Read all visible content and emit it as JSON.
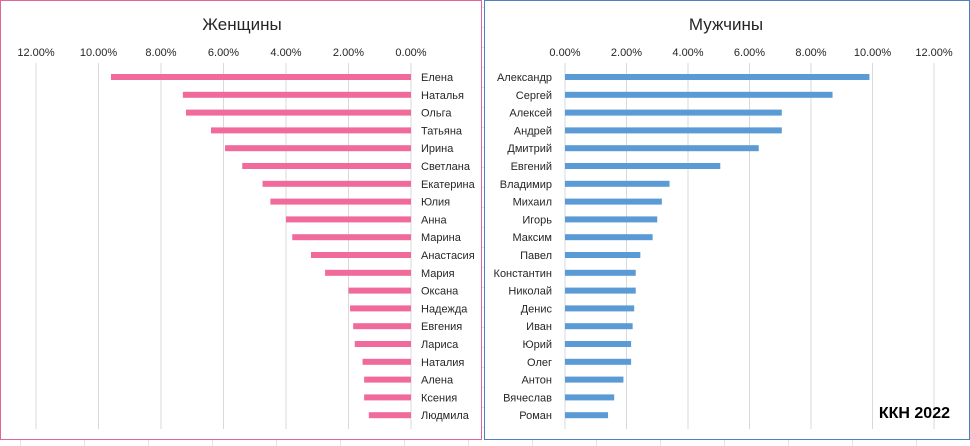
{
  "watermark": "ККН 2022",
  "chart_data": [
    {
      "type": "bar",
      "orientation": "horizontal",
      "x_direction": "reversed",
      "title": "Женщины",
      "xlim": [
        0,
        12
      ],
      "ticks": [
        "0.00%",
        "2.00%",
        "4.00%",
        "6.00%",
        "8.00%",
        "10.00%",
        "12.00%"
      ],
      "tick_values": [
        0,
        2,
        4,
        6,
        8,
        10,
        12
      ],
      "grid": true,
      "color": "#f06b9b",
      "categories": [
        "Елена",
        "Наталья",
        "Ольга",
        "Татьяна",
        "Ирина",
        "Светлана",
        "Екатерина",
        "Юлия",
        "Анна",
        "Марина",
        "Анастасия",
        "Мария",
        "Оксана",
        "Надежда",
        "Евгения",
        "Лариса",
        "Наталия",
        "Алена",
        "Ксения",
        "Людмила"
      ],
      "values": [
        9.6,
        7.3,
        7.2,
        6.4,
        5.95,
        5.4,
        4.75,
        4.5,
        4.0,
        3.8,
        3.2,
        2.75,
        2.0,
        1.95,
        1.85,
        1.8,
        1.55,
        1.5,
        1.5,
        1.35
      ]
    },
    {
      "type": "bar",
      "orientation": "horizontal",
      "title": "Мужчины",
      "xlim": [
        0,
        12
      ],
      "ticks": [
        "0.00%",
        "2.00%",
        "4.00%",
        "6.00%",
        "8.00%",
        "10.00%",
        "12.00%"
      ],
      "tick_values": [
        0,
        2,
        4,
        6,
        8,
        10,
        12
      ],
      "grid": true,
      "color": "#5b9bd5",
      "categories": [
        "Александр",
        "Сергей",
        "Алексей",
        "Андрей",
        "Дмитрий",
        "Евгений",
        "Владимир",
        "Михаил",
        "Игорь",
        "Максим",
        "Павел",
        "Константин",
        "Николай",
        "Денис",
        "Иван",
        "Юрий",
        "Олег",
        "Антон",
        "Вячеслав",
        "Роман"
      ],
      "values": [
        9.9,
        8.7,
        7.05,
        7.05,
        6.3,
        5.05,
        3.4,
        3.15,
        3.0,
        2.85,
        2.45,
        2.3,
        2.3,
        2.25,
        2.2,
        2.15,
        2.15,
        1.9,
        1.6,
        1.4
      ]
    }
  ]
}
